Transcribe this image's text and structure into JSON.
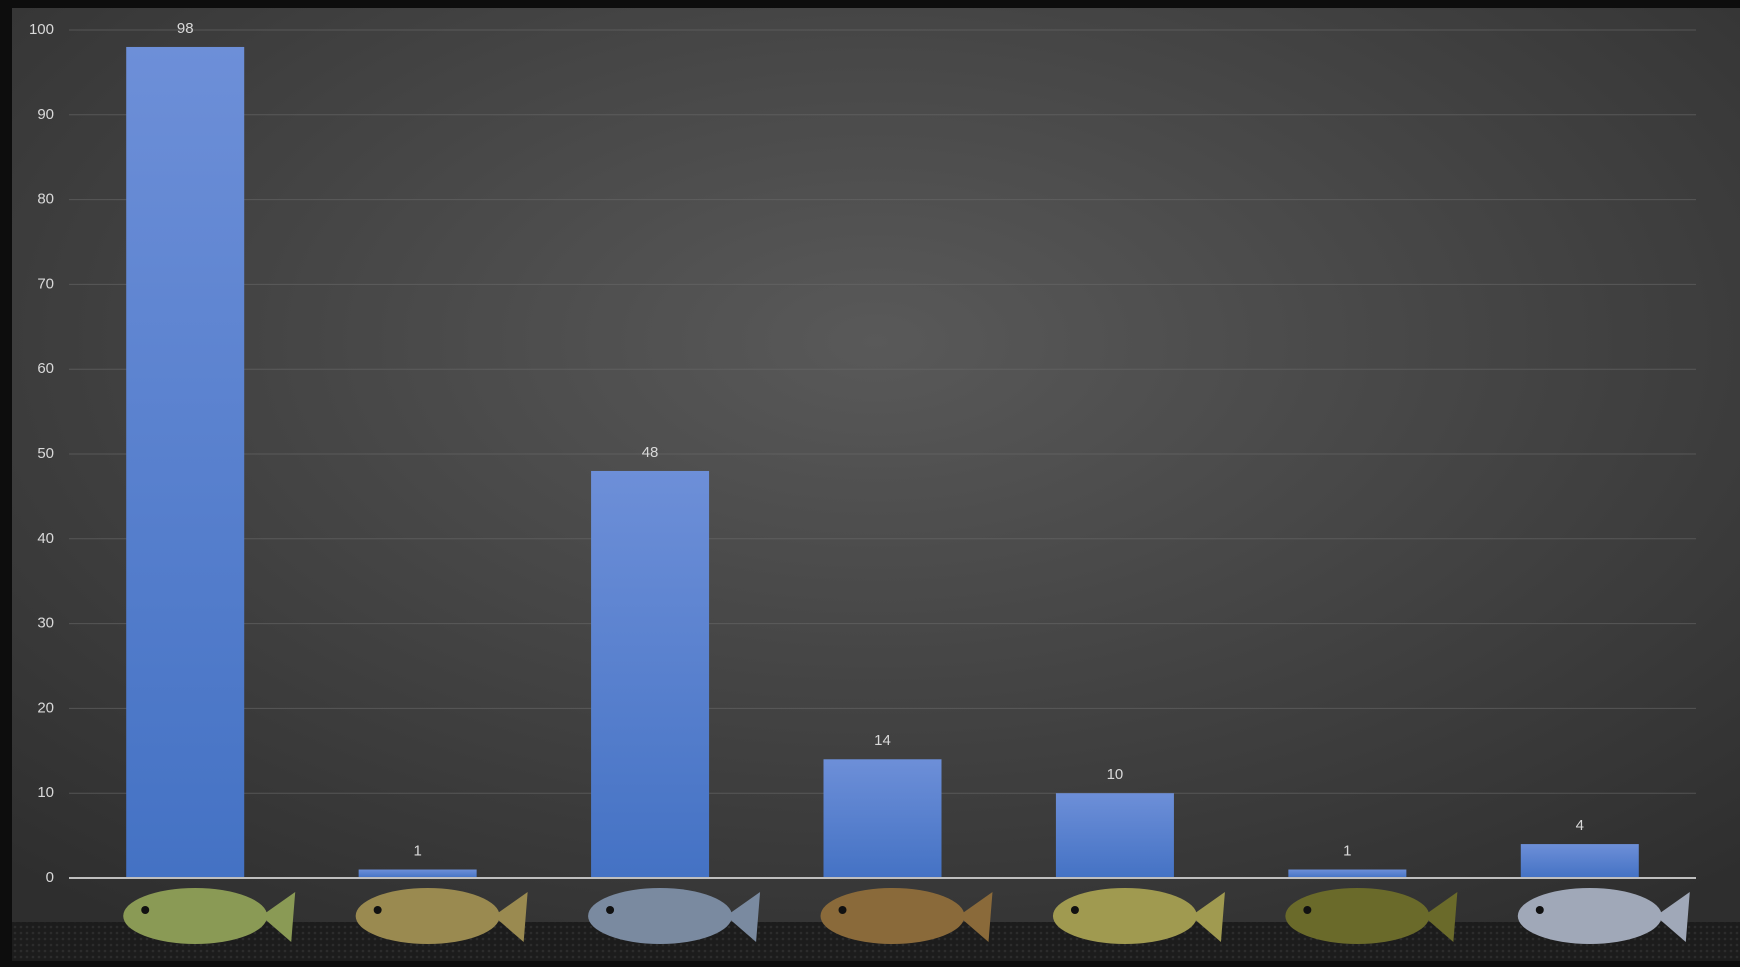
{
  "chart_data": {
    "type": "bar",
    "categories": [
      null,
      null,
      null,
      null,
      null,
      null,
      null
    ],
    "values": [
      98,
      1,
      48,
      14,
      10,
      1,
      4
    ],
    "color": "#4472c4",
    "ylim": [
      0,
      100
    ],
    "yticks": [
      0,
      10,
      20,
      30,
      40,
      50,
      60,
      70,
      80,
      90,
      100
    ],
    "grid": true
  }
}
